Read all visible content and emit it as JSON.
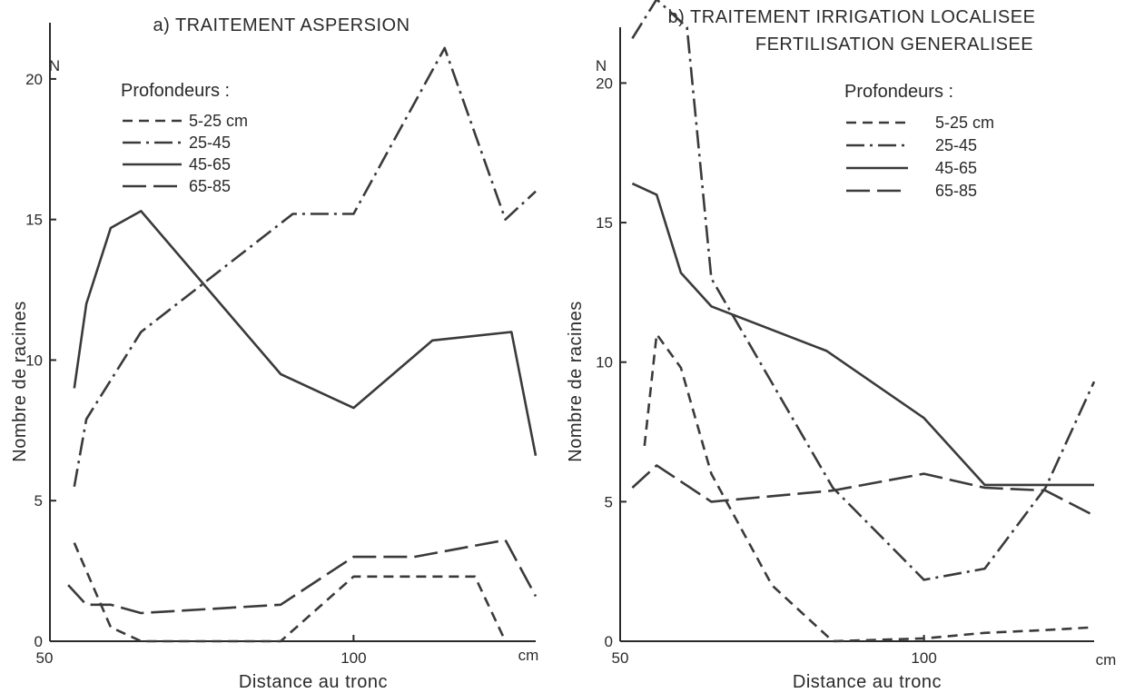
{
  "chart_data": [
    {
      "type": "line",
      "title": "a) TRAITEMENT ASPERSION",
      "y_unit_label": "N",
      "xlabel": "Distance au tronc",
      "x_unit_label": "cm",
      "ylabel": "Nombre de racines",
      "xlim": [
        50,
        130
      ],
      "ylim": [
        0,
        22
      ],
      "x_ticks": [
        50,
        100
      ],
      "x_tick_labels": [
        "50",
        "100"
      ],
      "y_ticks": [
        0,
        5,
        10,
        15,
        20
      ],
      "y_tick_labels": [
        "0",
        "5",
        "10",
        "15",
        "20"
      ],
      "legend_title": "Profondeurs :",
      "legend_position": "top-left",
      "grid": false,
      "series": [
        {
          "name": "5-25 cm",
          "dash": "dashed",
          "x": [
            54,
            60,
            65,
            88,
            100,
            120,
            125
          ],
          "y": [
            3.5,
            0.5,
            0,
            0,
            2.3,
            2.3,
            0
          ]
        },
        {
          "name": "25-45",
          "dash": "dashdot",
          "x": [
            54,
            56,
            65,
            90,
            100,
            115,
            125,
            130
          ],
          "y": [
            5.5,
            7.9,
            11,
            15.2,
            15.2,
            21.1,
            15,
            16
          ]
        },
        {
          "name": "45-65",
          "dash": "solid",
          "x": [
            54,
            56,
            60,
            65,
            88,
            100,
            113,
            126,
            130
          ],
          "y": [
            9,
            12,
            14.7,
            15.3,
            9.5,
            8.3,
            10.7,
            11,
            6.6
          ]
        },
        {
          "name": "65-85",
          "dash": "longdash",
          "x": [
            53,
            56,
            60,
            65,
            88,
            100,
            110,
            125,
            130
          ],
          "y": [
            2,
            1.3,
            1.3,
            1,
            1.3,
            3,
            3,
            3.6,
            1.6
          ]
        }
      ]
    },
    {
      "type": "line",
      "title": "b) TRAITEMENT IRRIGATION LOCALISEE",
      "subtitle": "FERTILISATION GENERALISEE",
      "y_unit_label": "N",
      "xlabel": "Distance au tronc",
      "x_unit_label": "cm",
      "ylabel": "Nombre de racines",
      "xlim": [
        50,
        128
      ],
      "ylim": [
        0,
        22
      ],
      "x_ticks": [
        50,
        100
      ],
      "x_tick_labels": [
        "50",
        "100"
      ],
      "y_ticks": [
        0,
        5,
        10,
        15,
        20
      ],
      "y_tick_labels": [
        "0",
        "5",
        "10",
        "15",
        "20"
      ],
      "legend_title": "Profondeurs :",
      "legend_position": "top-right",
      "grid": false,
      "series": [
        {
          "name": "5-25 cm",
          "dash": "dashed",
          "x": [
            54,
            56,
            60,
            65,
            75,
            85,
            100,
            110,
            120,
            128
          ],
          "y": [
            7,
            11,
            9.8,
            6,
            2,
            0,
            0.1,
            0.3,
            0.4,
            0.5
          ]
        },
        {
          "name": "25-45",
          "dash": "dashdot",
          "x": [
            52,
            56,
            61,
            65,
            85,
            100,
            110,
            120,
            128
          ],
          "y": [
            21.6,
            23,
            22,
            13,
            5.5,
            2.2,
            2.6,
            5.5,
            9.3
          ]
        },
        {
          "name": "45-65",
          "dash": "solid",
          "x": [
            52,
            56,
            60,
            65,
            84,
            100,
            110,
            120,
            128
          ],
          "y": [
            16.4,
            16,
            13.2,
            12,
            10.4,
            8,
            5.6,
            5.6,
            5.6
          ]
        },
        {
          "name": "65-85",
          "dash": "longdash",
          "x": [
            52,
            56,
            65,
            85,
            100,
            110,
            120,
            128
          ],
          "y": [
            5.5,
            6.3,
            5,
            5.4,
            6,
            5.5,
            5.4,
            4.5
          ]
        }
      ]
    }
  ]
}
